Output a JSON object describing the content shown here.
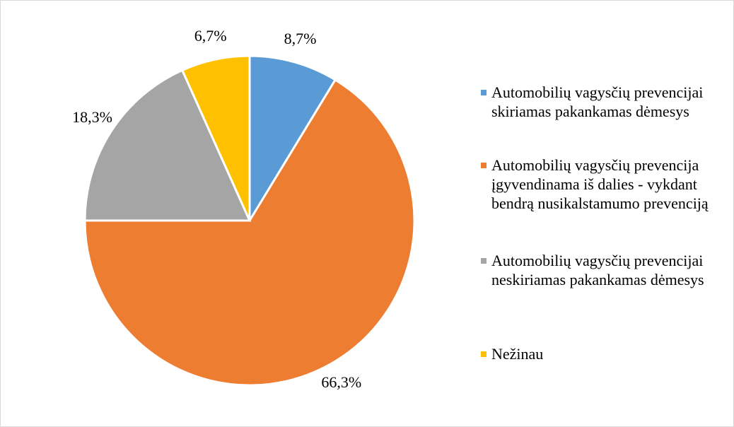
{
  "chart_data": {
    "type": "pie",
    "categories": [
      "Automobilių vagysčių prevencijai skiriamas pakankamas dėmesys",
      "Automobilių vagysčių prevencija įgyvendinama iš dalies - vykdant bendrą nusikalstamumo prevenciją",
      "Automobilių vagysčių prevencijai neskiriamas pakankamas dėmesys",
      "Nežinau"
    ],
    "values": [
      8.7,
      66.3,
      18.3,
      6.7
    ],
    "value_labels": [
      "8,7%",
      "66,3%",
      "18,3%",
      "6,7%"
    ],
    "colors": [
      "#5b9bd5",
      "#ed7d31",
      "#a5a5a5",
      "#ffc000"
    ],
    "legend": "right"
  }
}
